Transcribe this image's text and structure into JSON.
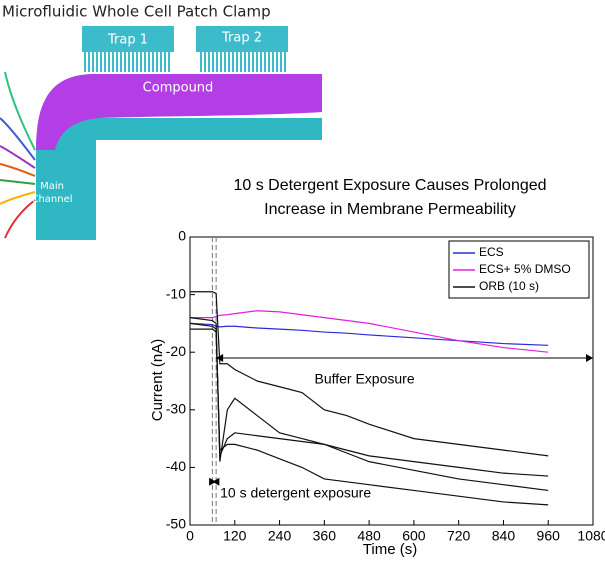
{
  "diagram": {
    "title": "Microfluidic Whole Cell Patch Clamp",
    "trap1": "Trap 1",
    "trap2": "Trap 2",
    "compound": "Compound",
    "main_channel": [
      "Main",
      "Channel"
    ]
  },
  "chart_data": {
    "type": "line",
    "title": [
      "10 s Detergent Exposure Causes Prolonged",
      "Increase in Membrane Permeability"
    ],
    "x_label": "Time (s)",
    "y_label": "Current (nA)",
    "xlim": [
      0,
      1080
    ],
    "ylim": [
      -50,
      0
    ],
    "xticks": [
      0,
      120,
      240,
      360,
      480,
      600,
      720,
      840,
      960,
      1080
    ],
    "yticks": [
      0,
      -10,
      -20,
      -30,
      -40,
      -50
    ],
    "x": [
      0,
      60,
      70,
      80,
      100,
      120,
      180,
      240,
      300,
      360,
      420,
      480,
      600,
      720,
      840,
      960
    ],
    "series": [
      {
        "name": "ECS",
        "color": "#2b2bd6",
        "values": [
          -15,
          -15.2,
          -15.5,
          -15.6,
          -15.5,
          -15.5,
          -15.8,
          -16,
          -16.2,
          -16.5,
          -16.7,
          -17,
          -17.5,
          -18,
          -18.5,
          -18.8
        ]
      },
      {
        "name": "ECS+ 5% DMSO",
        "color": "#e020e0",
        "values": [
          -14,
          -14,
          -13.8,
          -13.6,
          -13.5,
          -13.3,
          -12.8,
          -13,
          -13.5,
          -14,
          -14.5,
          -15,
          -16.5,
          -18,
          -19.2,
          -20
        ]
      },
      {
        "name": "ORB (10 s)",
        "color": "#111111",
        "values": [
          -9.5,
          -9.5,
          -9.8,
          -22,
          -22,
          -23,
          -25,
          -26,
          -27,
          -30,
          -31,
          -32.5,
          -35,
          -36,
          -37,
          -38
        ]
      },
      {
        "color": "#111111",
        "values": [
          -14,
          -14.5,
          -15,
          -39,
          -30,
          -28,
          -31,
          -34,
          -35,
          -36,
          -37,
          -38,
          -39,
          -40,
          -41,
          -41.5
        ]
      },
      {
        "color": "#111111",
        "values": [
          -15,
          -15.5,
          -16,
          -38,
          -35,
          -34,
          -34.5,
          -35,
          -35.5,
          -36,
          -37.5,
          -39,
          -40.5,
          -42,
          -43,
          -44
        ]
      },
      {
        "color": "#111111",
        "values": [
          -16,
          -16,
          -16.5,
          -37,
          -36,
          -36,
          -37,
          -38.5,
          -40,
          -42,
          -42.5,
          -43,
          -44,
          -45,
          -46,
          -46.5
        ]
      }
    ],
    "exposure_lines": [
      60,
      70
    ],
    "annotations": [
      {
        "text": "Buffer Exposure",
        "x0": 70,
        "x1": 1080,
        "y": -21
      },
      {
        "text": "10 s detergent exposure",
        "x0": 60,
        "x1": 70,
        "y": -42.5
      }
    ],
    "legend": "upper right"
  }
}
